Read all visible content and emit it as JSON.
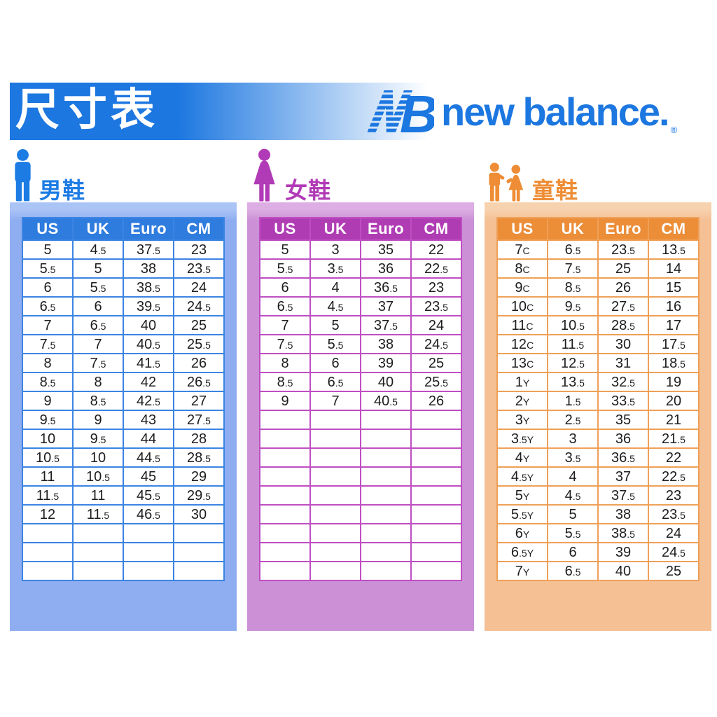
{
  "page_title": "尺寸表",
  "brand": {
    "wordmark": "new balance",
    "period": ".",
    "registered": "®",
    "blue": "#1c77e0"
  },
  "tables": [
    {
      "id": "men",
      "label": "男鞋",
      "icon": "man-icon",
      "columns": [
        "US",
        "UK",
        "Euro",
        "CM"
      ],
      "rows": [
        [
          "5",
          "4.5",
          "37.5",
          "23"
        ],
        [
          "5.5",
          "5",
          "38",
          "23.5"
        ],
        [
          "6",
          "5.5",
          "38.5",
          "24"
        ],
        [
          "6.5",
          "6",
          "39.5",
          "24.5"
        ],
        [
          "7",
          "6.5",
          "40",
          "25"
        ],
        [
          "7.5",
          "7",
          "40.5",
          "25.5"
        ],
        [
          "8",
          "7.5",
          "41.5",
          "26"
        ],
        [
          "8.5",
          "8",
          "42",
          "26.5"
        ],
        [
          "9",
          "8.5",
          "42.5",
          "27"
        ],
        [
          "9.5",
          "9",
          "43",
          "27.5"
        ],
        [
          "10",
          "9.5",
          "44",
          "28"
        ],
        [
          "10.5",
          "10",
          "44.5",
          "28.5"
        ],
        [
          "11",
          "10.5",
          "45",
          "29"
        ],
        [
          "11.5",
          "11",
          "45.5",
          "29.5"
        ],
        [
          "12",
          "11.5",
          "46.5",
          "30"
        ]
      ],
      "empty_rows": 3,
      "colors": {
        "label": "#1d7ce4",
        "panel": "#8fadf1",
        "panel_top": "#abc4f6",
        "header": "#2f7cdf",
        "grid": "#3b84e3",
        "text": "#1d1d1f"
      }
    },
    {
      "id": "women",
      "label": "女鞋",
      "icon": "woman-icon",
      "columns": [
        "US",
        "UK",
        "Euro",
        "CM"
      ],
      "rows": [
        [
          "5",
          "3",
          "35",
          "22"
        ],
        [
          "5.5",
          "3.5",
          "36",
          "22.5"
        ],
        [
          "6",
          "4",
          "36.5",
          "23"
        ],
        [
          "6.5",
          "4.5",
          "37",
          "23.5"
        ],
        [
          "7",
          "5",
          "37.5",
          "24"
        ],
        [
          "7.5",
          "5.5",
          "38",
          "24.5"
        ],
        [
          "8",
          "6",
          "39",
          "25"
        ],
        [
          "8.5",
          "6.5",
          "40",
          "25.5"
        ],
        [
          "9",
          "7",
          "40.5",
          "26"
        ]
      ],
      "empty_rows": 9,
      "colors": {
        "label": "#b13ab6",
        "panel": "#cb90d6",
        "panel_top": "#dcaee3",
        "header": "#b03cb4",
        "grid": "#bf4ec2",
        "text": "#1d1d1f"
      }
    },
    {
      "id": "kids",
      "label": "童鞋",
      "icon": "children-icon",
      "columns": [
        "US",
        "UK",
        "Euro",
        "CM"
      ],
      "rows": [
        [
          "7C",
          "6.5",
          "23.5",
          "13.5"
        ],
        [
          "8C",
          "7.5",
          "25",
          "14"
        ],
        [
          "9C",
          "8.5",
          "26",
          "15"
        ],
        [
          "10C",
          "9.5",
          "27.5",
          "16"
        ],
        [
          "11C",
          "10.5",
          "28.5",
          "17"
        ],
        [
          "12C",
          "11.5",
          "30",
          "17.5"
        ],
        [
          "13C",
          "12.5",
          "31",
          "18.5"
        ],
        [
          "1Y",
          "13.5",
          "32.5",
          "19"
        ],
        [
          "2Y",
          "1.5",
          "33.5",
          "20"
        ],
        [
          "3Y",
          "2.5",
          "35",
          "21"
        ],
        [
          "3.5Y",
          "3",
          "36",
          "21.5"
        ],
        [
          "4Y",
          "3.5",
          "36.5",
          "22"
        ],
        [
          "4.5Y",
          "4",
          "37",
          "22.5"
        ],
        [
          "5Y",
          "4.5",
          "37.5",
          "23"
        ],
        [
          "5.5Y",
          "5",
          "38",
          "23.5"
        ],
        [
          "6Y",
          "5.5",
          "38.5",
          "24"
        ],
        [
          "6.5Y",
          "6",
          "39",
          "24.5"
        ],
        [
          "7Y",
          "6.5",
          "40",
          "25"
        ]
      ],
      "empty_rows": 0,
      "colors": {
        "label": "#ee8d35",
        "panel": "#f4c094",
        "panel_top": "#f7d2ae",
        "header": "#ec8d38",
        "grid": "#efa058",
        "text": "#1d1d1f"
      }
    }
  ]
}
